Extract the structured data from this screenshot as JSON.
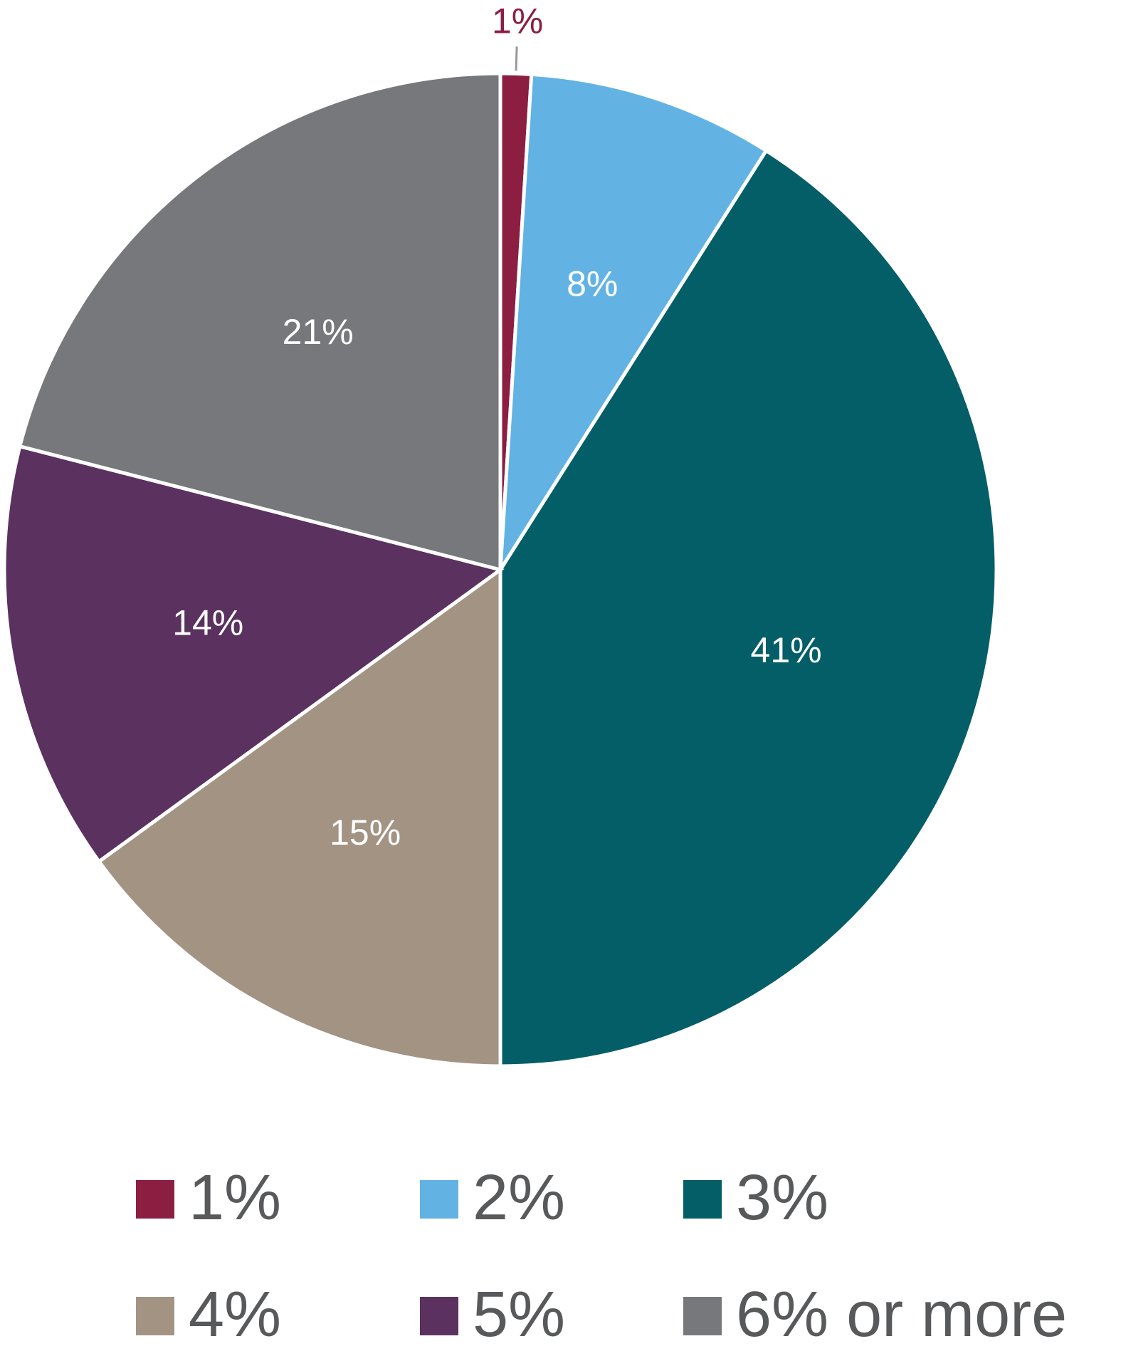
{
  "chart_data": {
    "type": "pie",
    "categories": [
      "1%",
      "2%",
      "3%",
      "4%",
      "5%",
      "6% or more"
    ],
    "values": [
      1,
      8,
      41,
      15,
      14,
      21
    ],
    "value_labels": [
      "1%",
      "8%",
      "41%",
      "15%",
      "14%",
      "21%"
    ],
    "colors": [
      "#8b1e41",
      "#62b3e4",
      "#045e67",
      "#a39383",
      "#5b3160",
      "#77787b"
    ],
    "legend": "bottom"
  }
}
